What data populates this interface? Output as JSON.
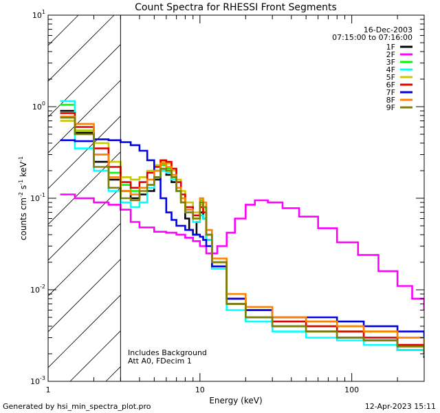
{
  "chart_data": {
    "type": "line",
    "title": "Count Spectra for RHESSI Front Segments",
    "xlabel": "Energy (keV)",
    "ylabel": "counts cm-2 s-1 keV-1",
    "xscale": "log",
    "yscale": "log",
    "xlim": [
      1,
      300
    ],
    "ylim": [
      0.001,
      10
    ],
    "x_ticks": [
      {
        "value": 1,
        "label": "1"
      },
      {
        "value": 10,
        "label": "10"
      },
      {
        "value": 100,
        "label": "100"
      }
    ],
    "y_ticks": [
      {
        "value": 0.001,
        "base": "10",
        "exp": "-3"
      },
      {
        "value": 0.01,
        "base": "10",
        "exp": "-2"
      },
      {
        "value": 0.1,
        "base": "10",
        "exp": "-1"
      },
      {
        "value": 1,
        "base": "10",
        "exp": "0"
      },
      {
        "value": 10,
        "base": "10",
        "exp": "1"
      }
    ],
    "hatched_region_xmax": 3,
    "info": {
      "date": "16-Dec-2003",
      "time_range": "07:15:00 to 07:16:00"
    },
    "annotations": [
      "Includes Background",
      "Att A0, FDecim 1"
    ],
    "footer_left": "Generated by hsi_min_spectra_plot.pro",
    "footer_right": "12-Apr-2023 15:11",
    "series": [
      {
        "name": "1F",
        "color": "#000000",
        "points": [
          [
            1.2,
            0.9
          ],
          [
            1.5,
            0.52
          ],
          [
            2.0,
            0.25
          ],
          [
            2.5,
            0.16
          ],
          [
            3,
            0.12
          ],
          [
            3.5,
            0.1
          ],
          [
            4.0,
            0.11
          ],
          [
            4.5,
            0.12
          ],
          [
            5.0,
            0.16
          ],
          [
            5.5,
            0.2
          ],
          [
            6.0,
            0.18
          ],
          [
            6.5,
            0.15
          ],
          [
            7.0,
            0.12
          ],
          [
            7.5,
            0.09
          ],
          [
            8.0,
            0.06
          ],
          [
            8.5,
            0.045
          ],
          [
            9.0,
            0.04
          ],
          [
            9.5,
            0.055
          ],
          [
            10.0,
            0.07
          ],
          [
            10.5,
            0.06
          ],
          [
            11.0,
            0.035
          ],
          [
            12,
            0.018
          ],
          [
            15,
            0.007
          ],
          [
            20,
            0.005
          ],
          [
            30,
            0.004
          ],
          [
            50,
            0.0035
          ],
          [
            80,
            0.003
          ],
          [
            120,
            0.0028
          ],
          [
            200,
            0.0022
          ],
          [
            300,
            0.0018
          ]
        ]
      },
      {
        "name": "2F",
        "color": "#ff00ff",
        "points": [
          [
            1.2,
            0.11
          ],
          [
            1.5,
            0.1
          ],
          [
            2.0,
            0.09
          ],
          [
            2.5,
            0.085
          ],
          [
            3,
            0.075
          ],
          [
            3.5,
            0.055
          ],
          [
            4.0,
            0.048
          ],
          [
            5.0,
            0.043
          ],
          [
            6.0,
            0.042
          ],
          [
            7.0,
            0.04
          ],
          [
            8.0,
            0.037
          ],
          [
            9.0,
            0.034
          ],
          [
            10.0,
            0.03
          ],
          [
            11.0,
            0.025
          ],
          [
            12.0,
            0.025
          ],
          [
            13.0,
            0.03
          ],
          [
            15.0,
            0.042
          ],
          [
            17.0,
            0.06
          ],
          [
            20.0,
            0.085
          ],
          [
            23.0,
            0.095
          ],
          [
            28.0,
            0.09
          ],
          [
            35.0,
            0.078
          ],
          [
            45.0,
            0.063
          ],
          [
            60.0,
            0.047
          ],
          [
            80.0,
            0.033
          ],
          [
            110.0,
            0.024
          ],
          [
            150.0,
            0.016
          ],
          [
            200.0,
            0.011
          ],
          [
            250.0,
            0.008
          ],
          [
            300.0,
            0.006
          ]
        ]
      },
      {
        "name": "3F",
        "color": "#00ff00",
        "points": [
          [
            1.2,
            1.05
          ],
          [
            1.5,
            0.55
          ],
          [
            2.0,
            0.3
          ],
          [
            2.5,
            0.19
          ],
          [
            3,
            0.14
          ],
          [
            3.5,
            0.12
          ],
          [
            4.0,
            0.13
          ],
          [
            4.5,
            0.14
          ],
          [
            5.0,
            0.2
          ],
          [
            5.5,
            0.23
          ],
          [
            6.0,
            0.21
          ],
          [
            6.5,
            0.17
          ],
          [
            7.0,
            0.13
          ],
          [
            7.5,
            0.1
          ],
          [
            8.0,
            0.075
          ],
          [
            9.0,
            0.06
          ],
          [
            10.0,
            0.095
          ],
          [
            10.5,
            0.08
          ],
          [
            11.0,
            0.04
          ],
          [
            12,
            0.02
          ],
          [
            15,
            0.008
          ],
          [
            20,
            0.006
          ],
          [
            30,
            0.0045
          ],
          [
            50,
            0.004
          ],
          [
            80,
            0.0035
          ],
          [
            120,
            0.003
          ],
          [
            200,
            0.0025
          ],
          [
            300,
            0.002
          ]
        ]
      },
      {
        "name": "4F",
        "color": "#00ffff",
        "points": [
          [
            1.2,
            1.15
          ],
          [
            1.5,
            0.35
          ],
          [
            2.0,
            0.2
          ],
          [
            2.5,
            0.12
          ],
          [
            3,
            0.09
          ],
          [
            3.5,
            0.08
          ],
          [
            4.0,
            0.09
          ],
          [
            4.5,
            0.13
          ],
          [
            5.0,
            0.17
          ],
          [
            5.5,
            0.2
          ],
          [
            6.0,
            0.19
          ],
          [
            6.5,
            0.16
          ],
          [
            7.0,
            0.12
          ],
          [
            7.5,
            0.09
          ],
          [
            8.0,
            0.07
          ],
          [
            9.0,
            0.055
          ],
          [
            10.0,
            0.065
          ],
          [
            10.5,
            0.06
          ],
          [
            11.0,
            0.035
          ],
          [
            12,
            0.017
          ],
          [
            15,
            0.006
          ],
          [
            20,
            0.0045
          ],
          [
            30,
            0.0035
          ],
          [
            50,
            0.003
          ],
          [
            80,
            0.0028
          ],
          [
            120,
            0.0025
          ],
          [
            200,
            0.0022
          ],
          [
            300,
            0.0019
          ]
        ]
      },
      {
        "name": "5F",
        "color": "#c8c800",
        "points": [
          [
            1.2,
            0.7
          ],
          [
            1.5,
            0.55
          ],
          [
            2.0,
            0.4
          ],
          [
            2.5,
            0.25
          ],
          [
            3,
            0.17
          ],
          [
            3.5,
            0.16
          ],
          [
            4.0,
            0.17
          ],
          [
            4.5,
            0.2
          ],
          [
            5.0,
            0.23
          ],
          [
            5.5,
            0.25
          ],
          [
            6.0,
            0.24
          ],
          [
            6.5,
            0.2
          ],
          [
            7.0,
            0.16
          ],
          [
            7.5,
            0.12
          ],
          [
            8.0,
            0.09
          ],
          [
            9.0,
            0.07
          ],
          [
            10.0,
            0.085
          ],
          [
            10.5,
            0.07
          ],
          [
            11.0,
            0.04
          ],
          [
            12,
            0.02
          ],
          [
            15,
            0.008
          ],
          [
            20,
            0.006
          ],
          [
            30,
            0.005
          ],
          [
            50,
            0.0045
          ],
          [
            80,
            0.004
          ],
          [
            120,
            0.0035
          ],
          [
            200,
            0.003
          ],
          [
            300,
            0.0025
          ]
        ]
      },
      {
        "name": "6F",
        "color": "#e00000",
        "points": [
          [
            1.2,
            0.85
          ],
          [
            1.5,
            0.6
          ],
          [
            2.0,
            0.35
          ],
          [
            2.5,
            0.22
          ],
          [
            3,
            0.15
          ],
          [
            3.5,
            0.13
          ],
          [
            4.0,
            0.15
          ],
          [
            4.5,
            0.19
          ],
          [
            5.0,
            0.22
          ],
          [
            5.5,
            0.26
          ],
          [
            6.0,
            0.25
          ],
          [
            6.5,
            0.21
          ],
          [
            7.0,
            0.15
          ],
          [
            7.5,
            0.11
          ],
          [
            8.0,
            0.08
          ],
          [
            9.0,
            0.065
          ],
          [
            10.0,
            0.08
          ],
          [
            10.5,
            0.07
          ],
          [
            11.0,
            0.04
          ],
          [
            12,
            0.02
          ],
          [
            15,
            0.008
          ],
          [
            20,
            0.006
          ],
          [
            30,
            0.0045
          ],
          [
            50,
            0.004
          ],
          [
            80,
            0.0035
          ],
          [
            120,
            0.003
          ],
          [
            200,
            0.0025
          ],
          [
            300,
            0.002
          ]
        ]
      },
      {
        "name": "7F",
        "color": "#0000e0",
        "points": [
          [
            1.2,
            0.43
          ],
          [
            1.5,
            0.42
          ],
          [
            2.0,
            0.44
          ],
          [
            2.5,
            0.43
          ],
          [
            3,
            0.41
          ],
          [
            3.5,
            0.38
          ],
          [
            4.0,
            0.33
          ],
          [
            4.5,
            0.26
          ],
          [
            5.0,
            0.17
          ],
          [
            5.5,
            0.1
          ],
          [
            6.0,
            0.07
          ],
          [
            6.5,
            0.058
          ],
          [
            7.0,
            0.05
          ],
          [
            8.0,
            0.045
          ],
          [
            9.0,
            0.04
          ],
          [
            10.0,
            0.038
          ],
          [
            10.5,
            0.035
          ],
          [
            11.0,
            0.03
          ],
          [
            12,
            0.018
          ],
          [
            15,
            0.008
          ],
          [
            20,
            0.006
          ],
          [
            30,
            0.005
          ],
          [
            50,
            0.005
          ],
          [
            80,
            0.0045
          ],
          [
            120,
            0.004
          ],
          [
            200,
            0.0035
          ],
          [
            300,
            0.003
          ]
        ]
      },
      {
        "name": "8F",
        "color": "#ff8000",
        "points": [
          [
            1.2,
            0.78
          ],
          [
            1.5,
            0.65
          ],
          [
            2.0,
            0.3
          ],
          [
            2.5,
            0.17
          ],
          [
            3,
            0.12
          ],
          [
            3.5,
            0.11
          ],
          [
            4.0,
            0.13
          ],
          [
            4.5,
            0.16
          ],
          [
            5.0,
            0.2
          ],
          [
            5.5,
            0.24
          ],
          [
            6.0,
            0.22
          ],
          [
            6.5,
            0.18
          ],
          [
            7.0,
            0.13
          ],
          [
            7.5,
            0.1
          ],
          [
            8.0,
            0.075
          ],
          [
            9.0,
            0.06
          ],
          [
            10.0,
            0.1
          ],
          [
            10.5,
            0.09
          ],
          [
            11.0,
            0.045
          ],
          [
            12,
            0.022
          ],
          [
            15,
            0.009
          ],
          [
            20,
            0.0065
          ],
          [
            30,
            0.005
          ],
          [
            50,
            0.0045
          ],
          [
            80,
            0.004
          ],
          [
            120,
            0.0035
          ],
          [
            200,
            0.003
          ],
          [
            300,
            0.0025
          ]
        ]
      },
      {
        "name": "9F",
        "color": "#808000",
        "points": [
          [
            1.2,
            0.76
          ],
          [
            1.5,
            0.5
          ],
          [
            2.0,
            0.22
          ],
          [
            2.5,
            0.13
          ],
          [
            3,
            0.1
          ],
          [
            3.5,
            0.095
          ],
          [
            4.0,
            0.12
          ],
          [
            4.5,
            0.14
          ],
          [
            5.0,
            0.17
          ],
          [
            5.5,
            0.21
          ],
          [
            6.0,
            0.2
          ],
          [
            6.5,
            0.17
          ],
          [
            7.0,
            0.12
          ],
          [
            7.5,
            0.09
          ],
          [
            8.0,
            0.07
          ],
          [
            9.0,
            0.06
          ],
          [
            10.0,
            0.09
          ],
          [
            10.5,
            0.08
          ],
          [
            11.0,
            0.04
          ],
          [
            12,
            0.02
          ],
          [
            15,
            0.007
          ],
          [
            20,
            0.005
          ],
          [
            30,
            0.004
          ],
          [
            50,
            0.0035
          ],
          [
            80,
            0.003
          ],
          [
            120,
            0.0028
          ],
          [
            200,
            0.0024
          ],
          [
            300,
            0.0021
          ]
        ]
      }
    ]
  }
}
